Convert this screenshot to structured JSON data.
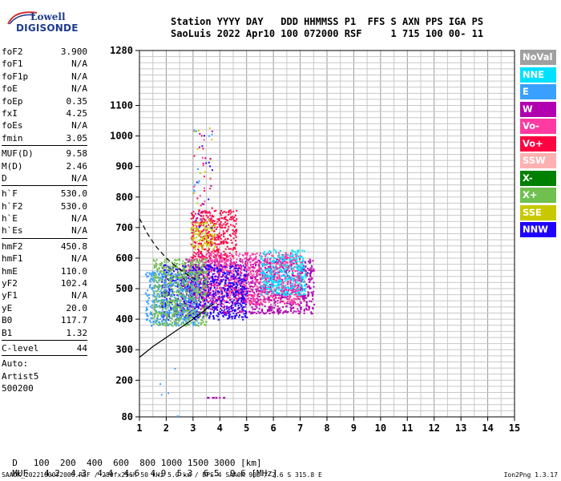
{
  "logo": {
    "top": "Lowell",
    "main": "DIGISONDE"
  },
  "header": {
    "line1": "Station YYYY DAY   DDD HHMMSS P1  FFS S AXN PPS IGA PS",
    "line2": "SaoLuis 2022 Apr10 100 072000 RSF     1 715 100 00- 11"
  },
  "params": [
    {
      "name": "foF2",
      "value": "3.900"
    },
    {
      "name": "foF1",
      "value": "N/A"
    },
    {
      "name": "foF1p",
      "value": "N/A"
    },
    {
      "name": "foE",
      "value": "N/A"
    },
    {
      "name": "foEp",
      "value": "0.35"
    },
    {
      "name": "fxI",
      "value": "4.25"
    },
    {
      "name": "foEs",
      "value": "N/A"
    },
    {
      "name": "fmin",
      "value": "3.05"
    },
    {
      "name": "MUF(D)",
      "value": "9.58",
      "sep": true
    },
    {
      "name": "M(D)",
      "value": "2.46"
    },
    {
      "name": "D",
      "value": "N/A"
    },
    {
      "name": "h`F",
      "value": "530.0",
      "sep": true
    },
    {
      "name": "h`F2",
      "value": "530.0"
    },
    {
      "name": "h`E",
      "value": "N/A"
    },
    {
      "name": "h`Es",
      "value": "N/A"
    },
    {
      "name": "hmF2",
      "value": "450.8",
      "sep": true
    },
    {
      "name": "hmF1",
      "value": "N/A"
    },
    {
      "name": "hmE",
      "value": "110.0"
    },
    {
      "name": "yF2",
      "value": "102.4"
    },
    {
      "name": "yF1",
      "value": "N/A"
    },
    {
      "name": "yE",
      "value": "20.0"
    },
    {
      "name": "B0",
      "value": "117.7"
    },
    {
      "name": "B1",
      "value": "1.32"
    },
    {
      "name": "C-level",
      "value": "44",
      "sep": true
    }
  ],
  "auto": {
    "label": "Auto:",
    "artist": "Artist5",
    "code": "500200"
  },
  "legend": [
    {
      "label": "NoVal",
      "color": "#a0a0a0"
    },
    {
      "label": "NNE",
      "color": "#00e0ff"
    },
    {
      "label": "E",
      "color": "#3aa0ff"
    },
    {
      "label": "W",
      "color": "#b000b0"
    },
    {
      "label": "Vo-",
      "color": "#ff3aa0"
    },
    {
      "label": "Vo+",
      "color": "#ff0040"
    },
    {
      "label": "SSW",
      "color": "#ffb0b0"
    },
    {
      "label": "X-",
      "color": "#008000"
    },
    {
      "label": "X+",
      "color": "#70c050"
    },
    {
      "label": "SSE",
      "color": "#c8c800"
    },
    {
      "label": "NNW",
      "color": "#2000ff"
    }
  ],
  "chart_data": {
    "type": "scatter",
    "xlabel": "",
    "ylabel": "",
    "xlim": [
      1,
      15
    ],
    "ylim": [
      80,
      1280
    ],
    "xticks": [
      "1",
      "2",
      "3",
      "4",
      "5",
      "6",
      "7",
      "8",
      "9",
      "10",
      "11",
      "12",
      "13",
      "14",
      "15"
    ],
    "yticks": [
      {
        "value": 80,
        "label": "80"
      },
      {
        "value": 200,
        "label": "200"
      },
      {
        "value": 300,
        "label": "300"
      },
      {
        "value": 400,
        "label": "400"
      },
      {
        "value": 500,
        "label": "500"
      },
      {
        "value": 600,
        "label": "600"
      },
      {
        "value": 700,
        "label": "700"
      },
      {
        "value": 800,
        "label": "800"
      },
      {
        "value": 900,
        "label": "900"
      },
      {
        "value": 1000,
        "label": "1000"
      },
      {
        "value": 1100,
        "label": "1100"
      },
      {
        "value": 1280,
        "label": "1280"
      }
    ],
    "grid": true,
    "solid_profile_curve": [
      [
        1.0,
        275
      ],
      [
        1.5,
        310
      ],
      [
        2.0,
        340
      ],
      [
        2.5,
        370
      ],
      [
        3.0,
        400
      ],
      [
        3.3,
        420
      ],
      [
        3.6,
        440
      ],
      [
        3.8,
        450.8
      ]
    ],
    "dashed_trace_curve": [
      [
        1.0,
        730
      ],
      [
        1.3,
        680
      ],
      [
        1.6,
        640
      ],
      [
        2.0,
        600
      ],
      [
        2.4,
        570
      ],
      [
        2.8,
        545
      ],
      [
        3.1,
        530
      ]
    ],
    "echo_clusters": [
      {
        "name": "W",
        "color": "#b000b0",
        "xmin": 2.5,
        "xmax": 7.5,
        "ymin": 420,
        "ymax": 600
      },
      {
        "name": "Vo-",
        "color": "#ff3aa0",
        "xmin": 2.8,
        "xmax": 7.0,
        "ymin": 450,
        "ymax": 620
      },
      {
        "name": "NNW",
        "color": "#2000ff",
        "xmin": 1.8,
        "xmax": 5.0,
        "ymin": 400,
        "ymax": 580
      },
      {
        "name": "E",
        "color": "#3aa0ff",
        "xmin": 1.2,
        "xmax": 3.2,
        "ymin": 380,
        "ymax": 560
      },
      {
        "name": "NNE",
        "color": "#00e0ff",
        "xmin": 5.5,
        "xmax": 7.2,
        "ymin": 480,
        "ymax": 630
      },
      {
        "name": "Vo+",
        "color": "#ff0040",
        "xmin": 2.9,
        "xmax": 4.6,
        "ymin": 600,
        "ymax": 760
      },
      {
        "name": "SSE",
        "color": "#c8c800",
        "xmin": 2.9,
        "xmax": 3.8,
        "ymin": 630,
        "ymax": 720
      },
      {
        "name": "X+",
        "color": "#70c050",
        "xmin": 1.5,
        "xmax": 3.5,
        "ymin": 380,
        "ymax": 600
      }
    ]
  },
  "distance": {
    "label": "D",
    "values": [
      "100",
      "200",
      "400",
      "600",
      "800",
      "1000",
      "1500",
      "3000"
    ],
    "unit": "[km]"
  },
  "muf": {
    "label": "MUF",
    "values": [
      "4.2",
      "4.3",
      "4.4",
      "4.6",
      "4.9",
      "5.3",
      "6.5",
      "9.6"
    ],
    "unit": "[MHz]"
  },
  "footer": {
    "left": "SAA0K_2022100072000.RSF / 280fx256h 50 kHz 5.0 km / DPS-4 SAA0K 903 / 2.6 S 315.8 E",
    "right": "Ion2Png 1.3.17"
  }
}
